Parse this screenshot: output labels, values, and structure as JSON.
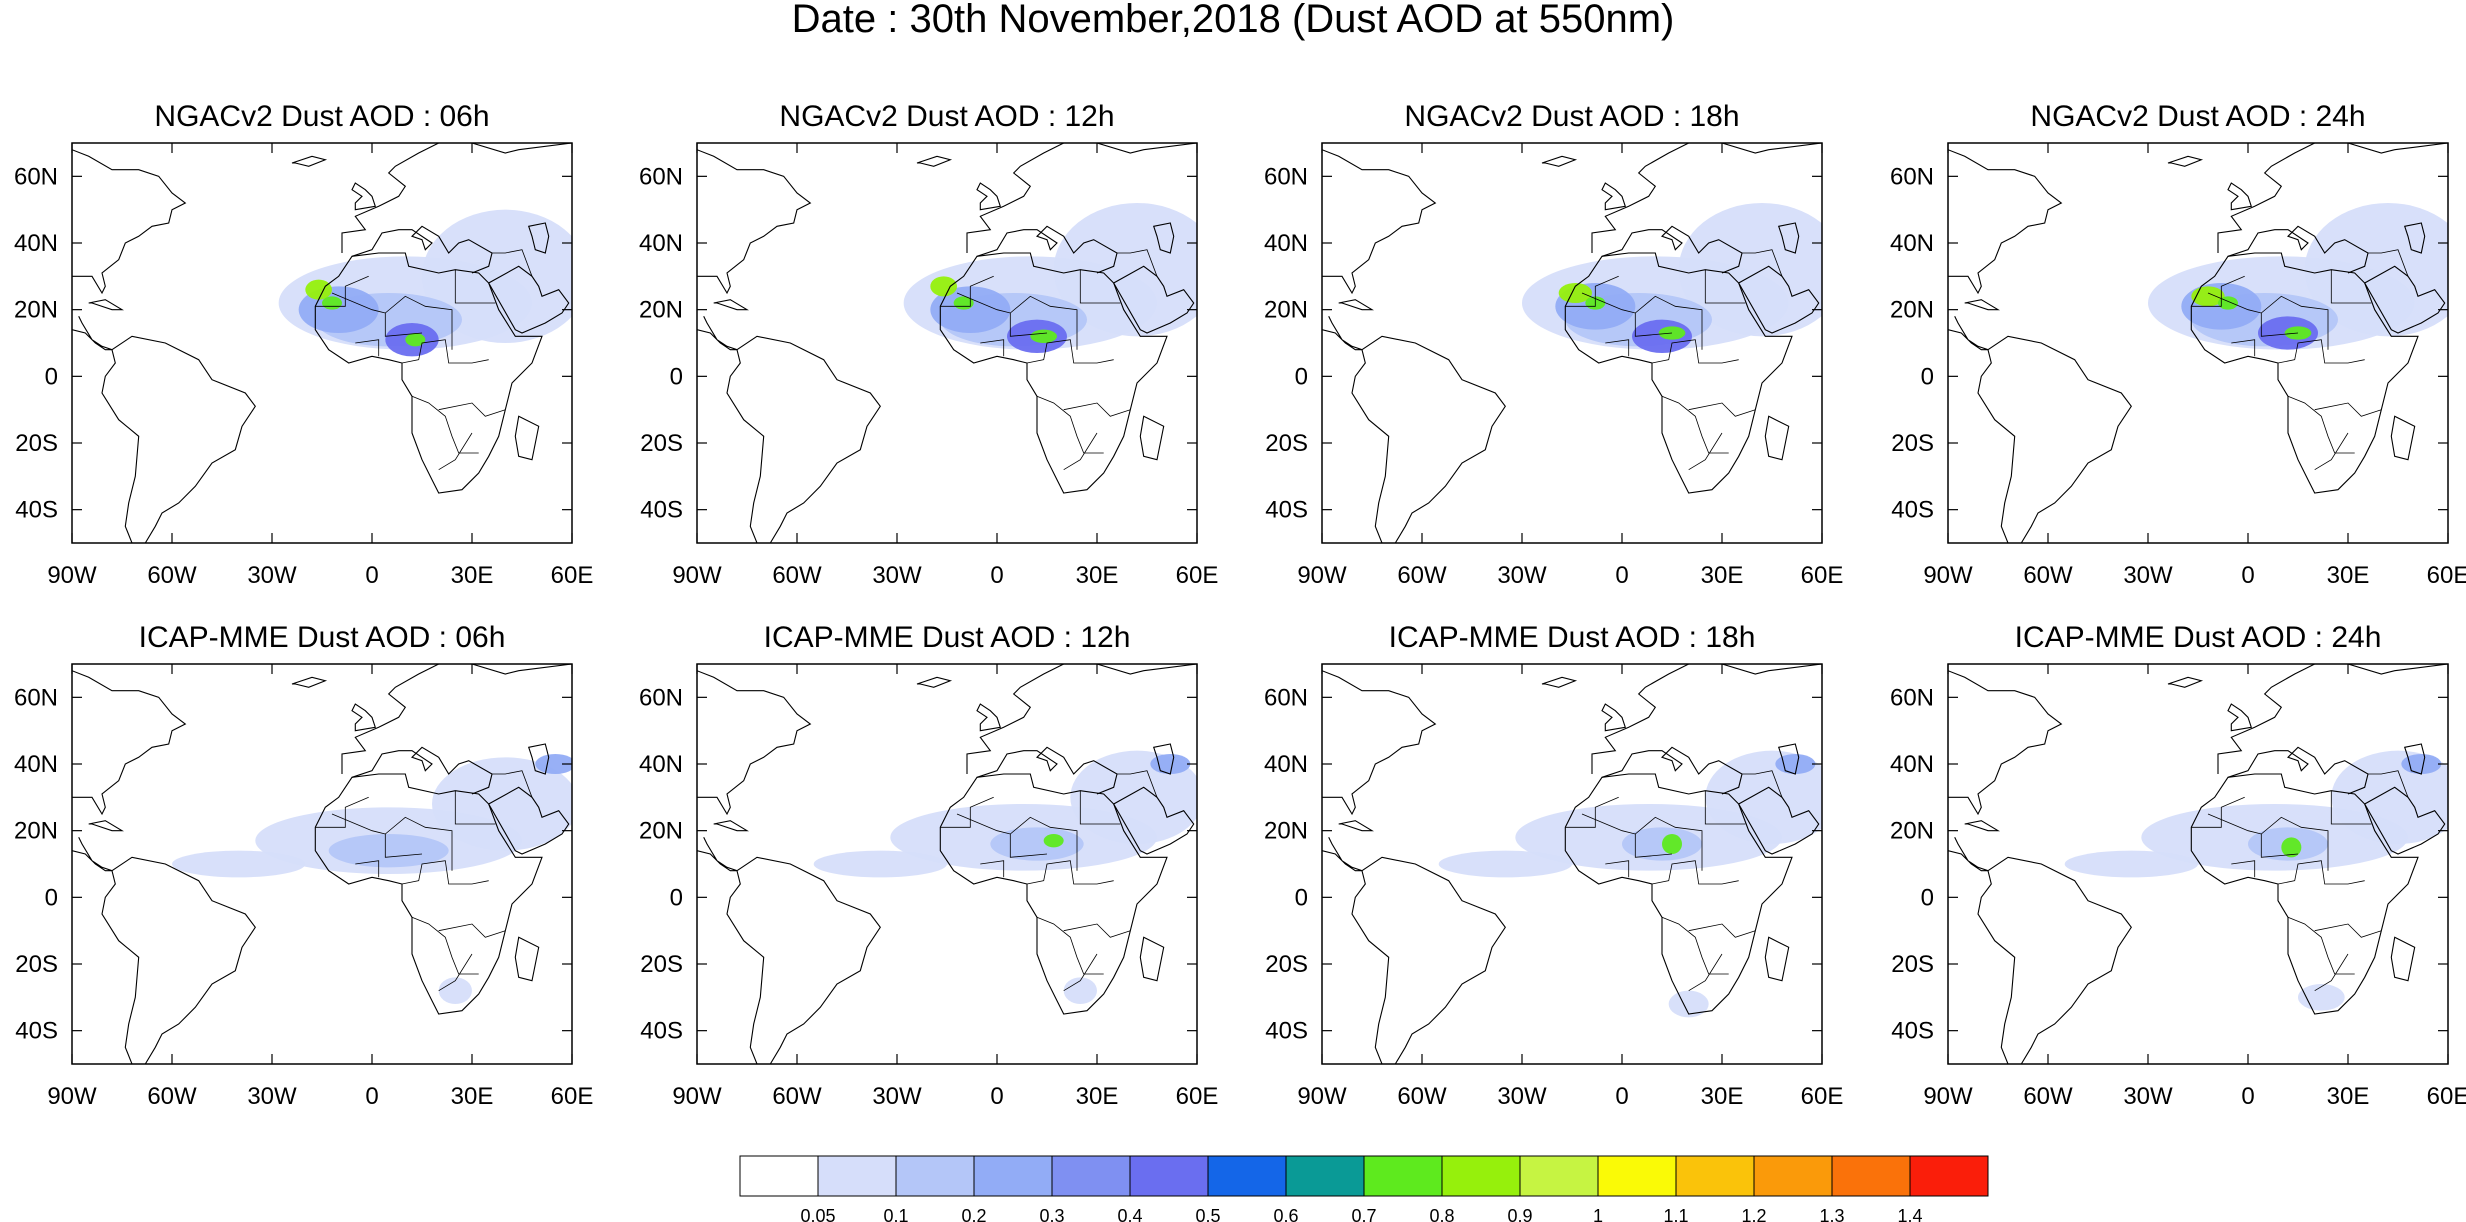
{
  "figure": {
    "title": "Date : 30th November,2018 (Dust AOD at 550nm)"
  },
  "axes": {
    "lon_ticks": [
      "90W",
      "60W",
      "30W",
      "0",
      "30E",
      "60E"
    ],
    "lat_ticks": [
      "60N",
      "40N",
      "20N",
      "0",
      "20S",
      "40S"
    ]
  },
  "colorbar": {
    "colors": [
      "#ffffff",
      "#d6defa",
      "#b4c6f8",
      "#92acf6",
      "#7f90f2",
      "#6a6ef0",
      "#1466e8",
      "#0a9a96",
      "#5eea1e",
      "#96f00c",
      "#c6f442",
      "#fafa06",
      "#fac30a",
      "#fa9a0a",
      "#fa720a",
      "#fa1e0a"
    ],
    "labels": [
      "0.05",
      "0.1",
      "0.2",
      "0.3",
      "0.4",
      "0.5",
      "0.6",
      "0.7",
      "0.8",
      "0.9",
      "1",
      "1.1",
      "1.2",
      "1.3",
      "1.4"
    ]
  },
  "panels": [
    {
      "title": "NGACv2 Dust AOD : 06h",
      "row": 0,
      "col": 0,
      "blobs": [
        {
          "lon": 10,
          "lat": 22,
          "rx": 38,
          "ry": 14,
          "c": 1
        },
        {
          "lon": 40,
          "lat": 30,
          "rx": 25,
          "ry": 20,
          "c": 1
        },
        {
          "lon": 5,
          "lat": 17,
          "rx": 22,
          "ry": 8,
          "c": 2
        },
        {
          "lon": -10,
          "lat": 20,
          "rx": 12,
          "ry": 7,
          "c": 3
        },
        {
          "lon": 12,
          "lat": 11,
          "rx": 8,
          "ry": 5,
          "c": 5
        },
        {
          "lon": -16,
          "lat": 26,
          "rx": 4,
          "ry": 3,
          "c": 9
        },
        {
          "lon": -12,
          "lat": 22,
          "rx": 3,
          "ry": 2,
          "c": 8
        },
        {
          "lon": 13,
          "lat": 11,
          "rx": 3,
          "ry": 2,
          "c": 8
        }
      ]
    },
    {
      "title": "NGACv2 Dust AOD : 12h",
      "row": 0,
      "col": 1,
      "blobs": [
        {
          "lon": 10,
          "lat": 22,
          "rx": 38,
          "ry": 14,
          "c": 1
        },
        {
          "lon": 42,
          "lat": 32,
          "rx": 25,
          "ry": 20,
          "c": 1
        },
        {
          "lon": 5,
          "lat": 17,
          "rx": 22,
          "ry": 8,
          "c": 2
        },
        {
          "lon": -8,
          "lat": 20,
          "rx": 12,
          "ry": 7,
          "c": 3
        },
        {
          "lon": 12,
          "lat": 12,
          "rx": 9,
          "ry": 5,
          "c": 5
        },
        {
          "lon": -16,
          "lat": 27,
          "rx": 4,
          "ry": 3,
          "c": 9
        },
        {
          "lon": -10,
          "lat": 22,
          "rx": 3,
          "ry": 2,
          "c": 8
        },
        {
          "lon": 14,
          "lat": 12,
          "rx": 4,
          "ry": 2,
          "c": 8
        }
      ]
    },
    {
      "title": "NGACv2 Dust AOD : 18h",
      "row": 0,
      "col": 2,
      "blobs": [
        {
          "lon": 10,
          "lat": 22,
          "rx": 40,
          "ry": 14,
          "c": 1
        },
        {
          "lon": 42,
          "lat": 32,
          "rx": 25,
          "ry": 20,
          "c": 1
        },
        {
          "lon": 5,
          "lat": 17,
          "rx": 22,
          "ry": 8,
          "c": 2
        },
        {
          "lon": -8,
          "lat": 21,
          "rx": 12,
          "ry": 7,
          "c": 3
        },
        {
          "lon": 12,
          "lat": 12,
          "rx": 9,
          "ry": 5,
          "c": 5
        },
        {
          "lon": -14,
          "lat": 25,
          "rx": 5,
          "ry": 3,
          "c": 9
        },
        {
          "lon": -8,
          "lat": 22,
          "rx": 3,
          "ry": 2,
          "c": 8
        },
        {
          "lon": 15,
          "lat": 13,
          "rx": 4,
          "ry": 2,
          "c": 8
        }
      ]
    },
    {
      "title": "NGACv2 Dust AOD : 24h",
      "row": 0,
      "col": 3,
      "blobs": [
        {
          "lon": 10,
          "lat": 22,
          "rx": 40,
          "ry": 14,
          "c": 1
        },
        {
          "lon": 42,
          "lat": 32,
          "rx": 25,
          "ry": 20,
          "c": 1
        },
        {
          "lon": 5,
          "lat": 17,
          "rx": 22,
          "ry": 8,
          "c": 2
        },
        {
          "lon": -8,
          "lat": 21,
          "rx": 12,
          "ry": 7,
          "c": 3
        },
        {
          "lon": 12,
          "lat": 13,
          "rx": 9,
          "ry": 5,
          "c": 5
        },
        {
          "lon": -12,
          "lat": 24,
          "rx": 5,
          "ry": 3,
          "c": 9
        },
        {
          "lon": -6,
          "lat": 22,
          "rx": 3,
          "ry": 2,
          "c": 8
        },
        {
          "lon": 15,
          "lat": 13,
          "rx": 4,
          "ry": 2,
          "c": 8
        }
      ]
    },
    {
      "title": "ICAP-MME Dust AOD : 06h",
      "row": 1,
      "col": 0,
      "blobs": [
        {
          "lon": 5,
          "lat": 17,
          "rx": 40,
          "ry": 10,
          "c": 1
        },
        {
          "lon": -40,
          "lat": 10,
          "rx": 20,
          "ry": 4,
          "c": 1
        },
        {
          "lon": 40,
          "lat": 28,
          "rx": 22,
          "ry": 14,
          "c": 1
        },
        {
          "lon": 5,
          "lat": 14,
          "rx": 18,
          "ry": 5,
          "c": 2
        },
        {
          "lon": 55,
          "lat": 40,
          "rx": 6,
          "ry": 3,
          "c": 3
        },
        {
          "lon": 25,
          "lat": -28,
          "rx": 5,
          "ry": 4,
          "c": 1
        }
      ]
    },
    {
      "title": "ICAP-MME Dust AOD : 12h",
      "row": 1,
      "col": 1,
      "blobs": [
        {
          "lon": 8,
          "lat": 18,
          "rx": 40,
          "ry": 10,
          "c": 1
        },
        {
          "lon": -35,
          "lat": 10,
          "rx": 20,
          "ry": 4,
          "c": 1
        },
        {
          "lon": 42,
          "lat": 30,
          "rx": 20,
          "ry": 14,
          "c": 1
        },
        {
          "lon": 12,
          "lat": 16,
          "rx": 14,
          "ry": 5,
          "c": 2
        },
        {
          "lon": 17,
          "lat": 17,
          "rx": 3,
          "ry": 2,
          "c": 8
        },
        {
          "lon": 52,
          "lat": 40,
          "rx": 6,
          "ry": 3,
          "c": 3
        },
        {
          "lon": 25,
          "lat": -28,
          "rx": 5,
          "ry": 4,
          "c": 1
        }
      ]
    },
    {
      "title": "ICAP-MME Dust AOD : 18h",
      "row": 1,
      "col": 2,
      "blobs": [
        {
          "lon": 8,
          "lat": 18,
          "rx": 40,
          "ry": 10,
          "c": 1
        },
        {
          "lon": -35,
          "lat": 10,
          "rx": 20,
          "ry": 4,
          "c": 1
        },
        {
          "lon": 45,
          "lat": 30,
          "rx": 20,
          "ry": 14,
          "c": 1
        },
        {
          "lon": 12,
          "lat": 16,
          "rx": 12,
          "ry": 5,
          "c": 2
        },
        {
          "lon": 15,
          "lat": 16,
          "rx": 3,
          "ry": 3,
          "c": 8
        },
        {
          "lon": 52,
          "lat": 40,
          "rx": 6,
          "ry": 3,
          "c": 3
        },
        {
          "lon": 20,
          "lat": -32,
          "rx": 6,
          "ry": 4,
          "c": 1
        }
      ]
    },
    {
      "title": "ICAP-MME Dust AOD : 24h",
      "row": 1,
      "col": 3,
      "blobs": [
        {
          "lon": 8,
          "lat": 18,
          "rx": 40,
          "ry": 10,
          "c": 1
        },
        {
          "lon": -35,
          "lat": 10,
          "rx": 20,
          "ry": 4,
          "c": 1
        },
        {
          "lon": 45,
          "lat": 30,
          "rx": 20,
          "ry": 14,
          "c": 1
        },
        {
          "lon": 12,
          "lat": 16,
          "rx": 12,
          "ry": 5,
          "c": 2
        },
        {
          "lon": 13,
          "lat": 15,
          "rx": 3,
          "ry": 3,
          "c": 8
        },
        {
          "lon": 52,
          "lat": 40,
          "rx": 6,
          "ry": 3,
          "c": 3
        },
        {
          "lon": 22,
          "lat": -30,
          "rx": 7,
          "ry": 4,
          "c": 1
        }
      ]
    }
  ]
}
